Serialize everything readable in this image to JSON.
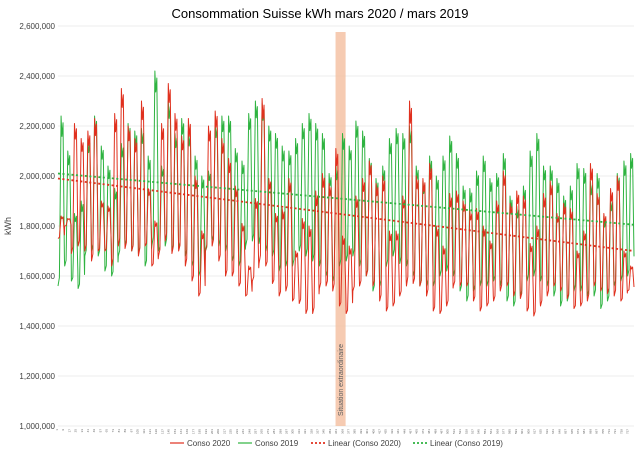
{
  "chart_data": {
    "type": "line",
    "title": "Consommation Suisse kWh mars 2020 / mars 2019",
    "xlabel": "",
    "ylabel": "kWh",
    "ylim": [
      1000000,
      2600000
    ],
    "yticks": [
      "1,000,000",
      "1,200,000",
      "1,400,000",
      "1,600,000",
      "1,800,000",
      "2,000,000",
      "2,200,000",
      "2,400,000",
      "2,600,000"
    ],
    "ytick_values": [
      1000000,
      1200000,
      1400000,
      1600000,
      1800000,
      2000000,
      2200000,
      2400000,
      2600000
    ],
    "x_count": 744,
    "x_tick_step": 8,
    "grid": true,
    "legend_position": "bottom",
    "annotation": {
      "label": "Situation extraordinaire",
      "x_start": 358,
      "x_end": 371,
      "color": "#f4c2a4"
    },
    "series": [
      {
        "name": "Conso 2020",
        "color": "#e0301e",
        "kind": "line",
        "daily_peak": [
          1840000,
          1830000,
          2210000,
          2150000,
          2180000,
          2230000,
          1900000,
          1880000,
          2250000,
          2350000,
          2200000,
          2150000,
          2300000,
          1950000,
          1820000,
          2210000,
          2370000,
          2250000,
          2160000,
          2230000,
          2000000,
          1780000,
          2200000,
          2260000,
          2150000,
          2070000,
          1960000,
          1810000,
          1640000,
          1910000,
          2310000,
          1990000,
          1850000,
          1870000,
          1990000,
          1700000,
          1830000,
          1800000,
          1940000,
          2010000,
          1970000,
          2110000,
          1760000,
          1720000,
          1920000,
          1990000,
          2060000,
          1970000,
          2000000,
          1780000,
          1780000,
          1920000,
          2300000,
          2000000,
          1990000,
          2050000,
          1800000,
          1720000,
          1930000,
          1940000,
          1900000,
          1860000,
          1870000,
          1800000,
          1740000,
          1900000,
          2020000,
          1890000,
          1940000,
          1920000,
          1730000,
          1800000,
          1930000,
          1980000,
          1850000,
          1890000,
          1870000,
          1700000,
          1780000,
          2050000,
          1930000,
          1850000,
          1950000,
          2000000,
          1700000,
          1640000
        ],
        "daily_trough": [
          1750000,
          1800000,
          1690000,
          1720000,
          1700000,
          1660000,
          1700000,
          1700000,
          1640000,
          1720000,
          1710000,
          1700000,
          1680000,
          1720000,
          1640000,
          1680000,
          1740000,
          1690000,
          1700000,
          1640000,
          1580000,
          1520000,
          1700000,
          1720000,
          1660000,
          1600000,
          1600000,
          1560000,
          1520000,
          1580000,
          1650000,
          1640000,
          1570000,
          1520000,
          1540000,
          1500000,
          1490000,
          1450000,
          1450000,
          1550000,
          1560000,
          1540000,
          1480000,
          1450000,
          1540000,
          1560000,
          1600000,
          1560000,
          1500000,
          1460000,
          1480000,
          1520000,
          1560000,
          1570000,
          1560000,
          1520000,
          1460000,
          1450000,
          1480000,
          1560000,
          1560000,
          1560000,
          1500000,
          1460000,
          1480000,
          1500000,
          1540000,
          1560000,
          1520000,
          1510000,
          1460000,
          1440000,
          1480000,
          1520000,
          1560000,
          1540000,
          1510000,
          1470000,
          1480000,
          1500000,
          1560000,
          1540000,
          1530000,
          1520000,
          1500000,
          1540000
        ]
      },
      {
        "name": "Conso 2019",
        "color": "#2eb340",
        "kind": "line",
        "daily_peak": [
          2240000,
          2100000,
          1850000,
          1900000,
          2150000,
          2240000,
          2120000,
          2040000,
          1950000,
          2130000,
          2210000,
          2180000,
          2190000,
          2080000,
          2420000,
          2040000,
          2300000,
          2170000,
          2230000,
          2180000,
          2080000,
          2000000,
          2020000,
          2210000,
          2240000,
          2240000,
          2110000,
          2060000,
          2250000,
          2300000,
          2290000,
          2200000,
          2170000,
          2120000,
          2100000,
          2150000,
          2210000,
          2250000,
          2210000,
          2170000,
          2010000,
          2040000,
          2170000,
          2120000,
          2220000,
          2180000,
          2070000,
          1990000,
          2040000,
          2150000,
          2190000,
          2170000,
          2200000,
          2040000,
          1980000,
          2080000,
          2000000,
          2080000,
          2160000,
          2090000,
          1960000,
          1950000,
          2020000,
          2080000,
          1990000,
          2010000,
          2090000,
          1920000,
          1880000,
          1960000,
          2100000,
          2170000,
          2040000,
          2040000,
          1990000,
          1920000,
          1960000,
          2050000,
          2030000,
          1980000,
          2010000,
          1840000,
          1910000,
          2010000,
          2060000,
          2090000
        ],
        "daily_trough": [
          1560000,
          1640000,
          1580000,
          1550000,
          1680000,
          1700000,
          1680000,
          1620000,
          1600000,
          1680000,
          1720000,
          1700000,
          1690000,
          1640000,
          1720000,
          1700000,
          1720000,
          1700000,
          1710000,
          1680000,
          1640000,
          1600000,
          1700000,
          1740000,
          1720000,
          1700000,
          1660000,
          1640000,
          1720000,
          1740000,
          1730000,
          1700000,
          1680000,
          1620000,
          1640000,
          1640000,
          1700000,
          1680000,
          1660000,
          1640000,
          1600000,
          1580000,
          1640000,
          1660000,
          1680000,
          1640000,
          1600000,
          1540000,
          1560000,
          1640000,
          1680000,
          1650000,
          1640000,
          1600000,
          1560000,
          1560000,
          1560000,
          1600000,
          1620000,
          1600000,
          1540000,
          1500000,
          1540000,
          1560000,
          1560000,
          1580000,
          1560000,
          1500000,
          1480000,
          1520000,
          1580000,
          1600000,
          1580000,
          1560000,
          1520000,
          1480000,
          1500000,
          1540000,
          1540000,
          1520000,
          1520000,
          1470000,
          1500000,
          1560000,
          1580000,
          1600000
        ]
      },
      {
        "name": "Linear (Conso 2020)",
        "color": "#e0301e",
        "kind": "trend",
        "start": 1990000,
        "end": 1700000
      },
      {
        "name": "Linear (Conso 2019)",
        "color": "#2eb340",
        "kind": "trend",
        "start": 2010000,
        "end": 1805000
      }
    ]
  }
}
